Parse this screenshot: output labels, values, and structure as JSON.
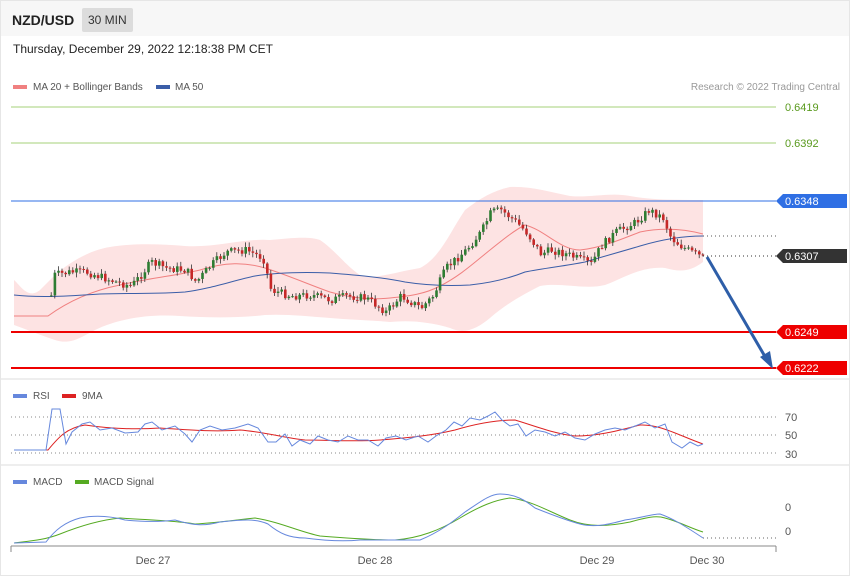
{
  "header": {
    "symbol": "NZD/USD",
    "timeframe": "30 MIN",
    "datetime": "Thursday, December 29, 2022 12:18:38 PM CET"
  },
  "legend_main": {
    "ma20_label": "MA 20 + Bollinger Bands",
    "ma50_label": "MA 50",
    "copyright": "Research © 2022 Trading Central"
  },
  "legend_rsi": {
    "rsi_label": "RSI",
    "ma9_label": "9MA"
  },
  "legend_macd": {
    "macd_label": "MACD",
    "signal_label": "MACD Signal"
  },
  "colors": {
    "bull": "#2e7d32",
    "bear": "#c62828",
    "ma20": "#f08080",
    "ma50": "#3b5ea8",
    "bb_fill": "#fde3e3",
    "resistance_green": "#7cb342",
    "pivot_blue": "#2f6fe4",
    "support_red": "#ee0000",
    "current": "#333333",
    "arrow": "#2e5ea8",
    "rsi": "#6688dd",
    "rsi_ma": "#dd2222",
    "macd": "#6688dd",
    "macd_signal": "#55aa22"
  },
  "chart_data": [
    {
      "type": "candlestick",
      "title": "NZD/USD",
      "x_ticks": [
        "Dec 27",
        "Dec 28",
        "Dec 29",
        "Dec 30"
      ],
      "ylim": [
        0.6211,
        0.6434
      ],
      "levels": [
        {
          "value": 0.6419,
          "label": "0.6419",
          "kind": "resistance"
        },
        {
          "value": 0.6392,
          "label": "0.6392",
          "kind": "resistance"
        },
        {
          "value": 0.6348,
          "label": "0.6348",
          "kind": "pivot"
        },
        {
          "value": 0.6307,
          "label": "0.6307",
          "kind": "current"
        },
        {
          "value": 0.6249,
          "label": "0.6249",
          "kind": "support"
        },
        {
          "value": 0.6222,
          "label": "0.6222",
          "kind": "support"
        }
      ],
      "projection": {
        "from": 0.6307,
        "to": 0.6222,
        "direction": "down"
      }
    },
    {
      "type": "line",
      "title": "RSI",
      "y_ticks": [
        "70",
        "50",
        "30"
      ],
      "series": [
        {
          "name": "RSI"
        },
        {
          "name": "9MA"
        }
      ]
    },
    {
      "type": "line",
      "title": "MACD",
      "y_ticks": [
        "0",
        "0"
      ],
      "series": [
        {
          "name": "MACD"
        },
        {
          "name": "MACD Signal"
        }
      ]
    }
  ]
}
